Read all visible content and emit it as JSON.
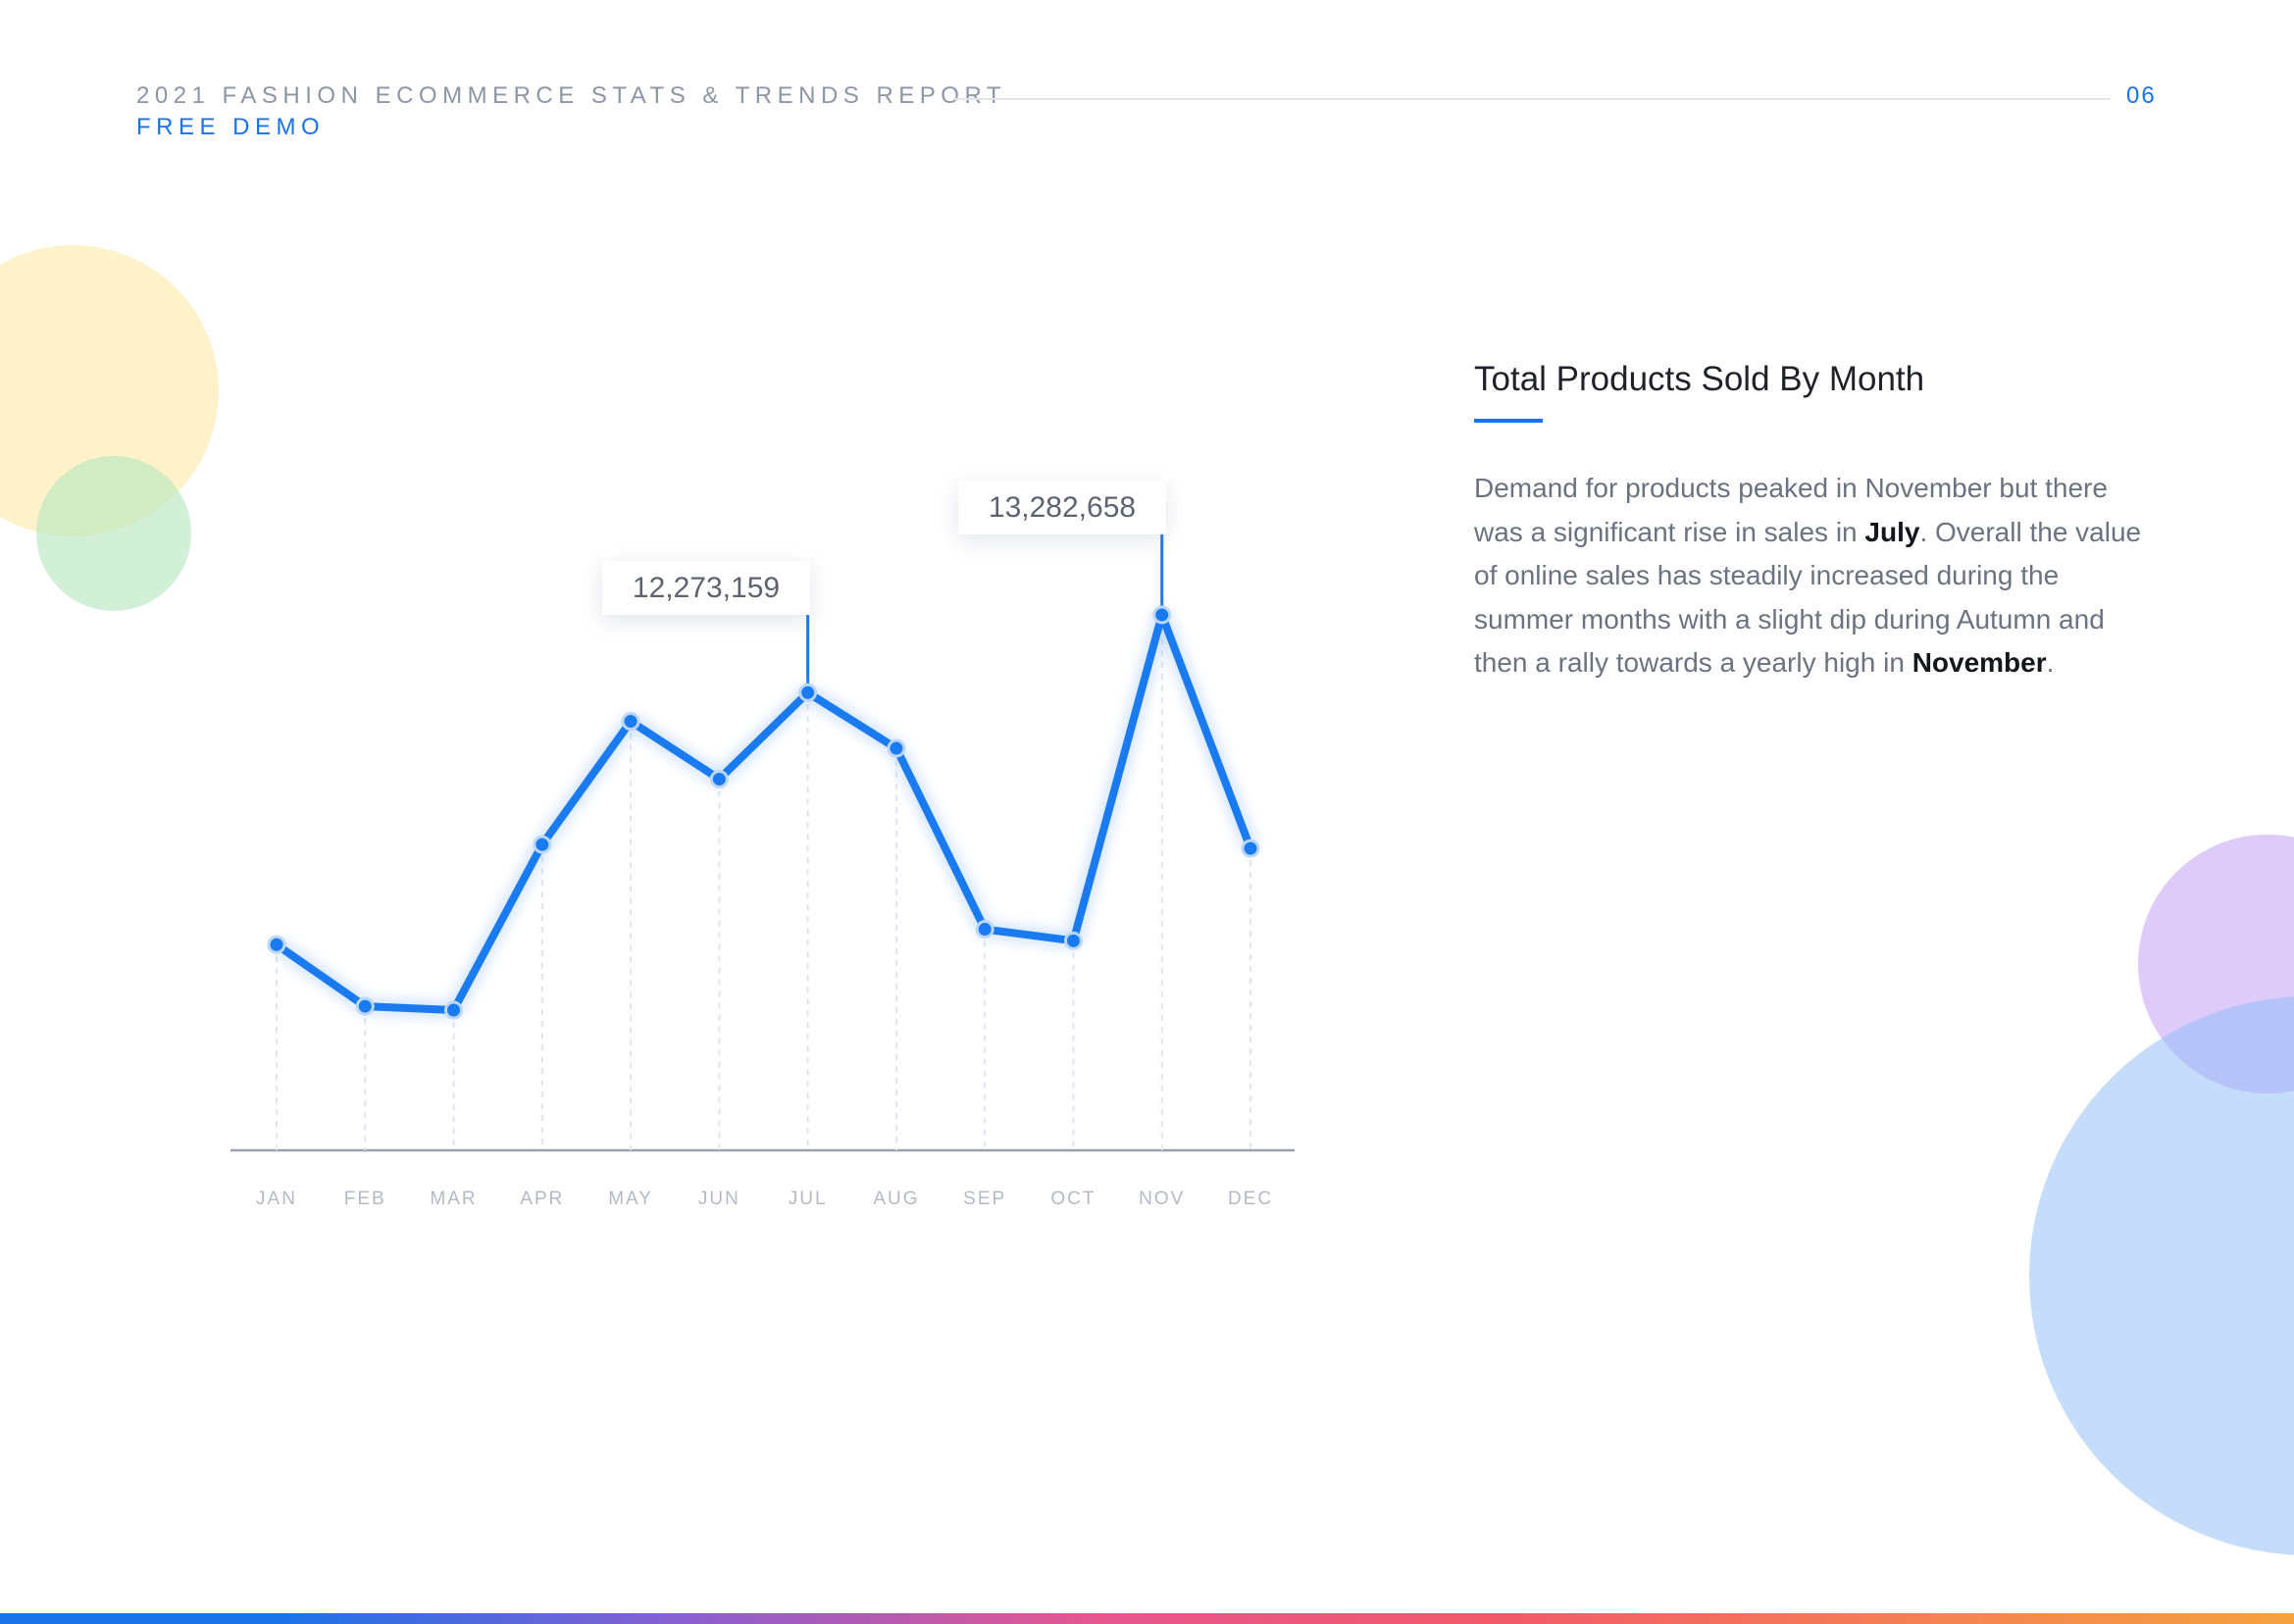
{
  "header": {
    "report_title": "2021 FASHION ECOMMERCE STATS & TRENDS REPORT",
    "subtitle": "FREE DEMO",
    "page_number": "06"
  },
  "panel": {
    "heading": "Total Products Sold By Month",
    "description": {
      "part1": "Demand for products peaked in November but there was a significant rise in sales in ",
      "bold1": "July",
      "part2": ". Overall the value of online sales has steadily increased during the summer months with a slight dip during Autumn and then a rally towards a yearly high in ",
      "bold2": "November",
      "part3": "."
    }
  },
  "callouts": {
    "jul": "12,273,159",
    "nov": "13,282,658"
  },
  "colors": {
    "accent": "#1a73e8",
    "line": "#1a7af0"
  },
  "chart_data": {
    "type": "line",
    "categories": [
      "JAN",
      "FEB",
      "MAR",
      "APR",
      "MAY",
      "JUN",
      "JUL",
      "AUG",
      "SEP",
      "OCT",
      "NOV",
      "DEC"
    ],
    "series": [
      {
        "values": [
          9000000,
          8200000,
          8150000,
          10300000,
          11900000,
          11150000,
          12273159,
          11550000,
          9200000,
          9050000,
          13282658,
          10250000
        ]
      }
    ],
    "annotations": [
      {
        "category": "JUL",
        "label": "12,273,159"
      },
      {
        "category": "NOV",
        "label": "13,282,658"
      }
    ],
    "title": "Total Products Sold By Month",
    "xlabel": "",
    "ylabel": "",
    "y_axis_shown": false,
    "grid": false
  }
}
